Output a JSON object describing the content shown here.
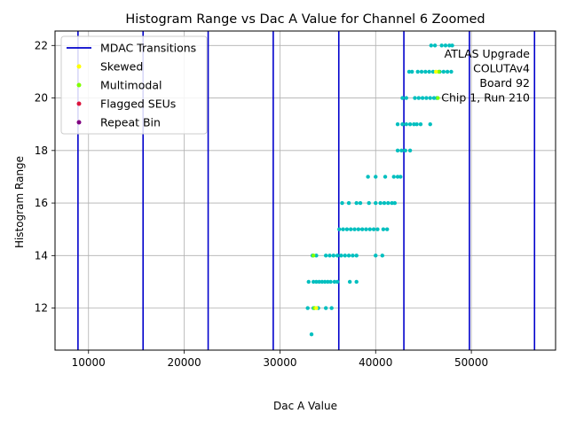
{
  "chart_data": {
    "type": "scatter",
    "title": "Histogram Range vs Dac A Value for Channel 6 Zoomed",
    "xlabel": "Dac A Value",
    "ylabel": "Histogram Range",
    "xlim": [
      6500,
      58800
    ],
    "ylim": [
      10.4,
      22.55
    ],
    "xticks": [
      10000,
      20000,
      30000,
      40000,
      50000
    ],
    "xtick_labels": [
      "10000",
      "20000",
      "30000",
      "40000",
      "50000"
    ],
    "yticks": [
      12,
      14,
      16,
      18,
      20,
      22
    ],
    "ytick_labels": [
      "12",
      "14",
      "16",
      "18",
      "20",
      "22"
    ],
    "grid": true,
    "legend_position": "top-left",
    "annotation": [
      "ATLAS Upgrade",
      "COLUTAv4",
      "Board 92",
      "Chip 1, Run 210"
    ],
    "mdac_transitions": [
      8900,
      15700,
      22500,
      29300,
      36150,
      42950,
      49800,
      56600
    ],
    "legend": [
      {
        "label": "MDAC Transitions",
        "kind": "line",
        "color": "#0000cc"
      },
      {
        "label": "Skewed",
        "kind": "point",
        "color": "#ffff00"
      },
      {
        "label": "Multimodal",
        "kind": "point",
        "color": "#7fff00"
      },
      {
        "label": "Flagged SEUs",
        "kind": "point",
        "color": "#dc143c"
      },
      {
        "label": "Repeat Bin",
        "kind": "point",
        "color": "#800080"
      }
    ],
    "series": [
      {
        "color": "#00bfbf",
        "points": [
          [
            33300,
            11
          ],
          [
            32900,
            12
          ],
          [
            33500,
            12
          ],
          [
            34000,
            12
          ],
          [
            34800,
            12
          ],
          [
            35400,
            12
          ],
          [
            33000,
            13
          ],
          [
            33500,
            13
          ],
          [
            33800,
            13
          ],
          [
            34100,
            13
          ],
          [
            34400,
            13
          ],
          [
            34700,
            13
          ],
          [
            35000,
            13
          ],
          [
            35300,
            13
          ],
          [
            35700,
            13
          ],
          [
            36000,
            13
          ],
          [
            37300,
            13
          ],
          [
            38000,
            13
          ],
          [
            33400,
            14
          ],
          [
            33800,
            14
          ],
          [
            34800,
            14
          ],
          [
            35200,
            14
          ],
          [
            35600,
            14
          ],
          [
            36000,
            14
          ],
          [
            36400,
            14
          ],
          [
            36800,
            14
          ],
          [
            37200,
            14
          ],
          [
            37600,
            14
          ],
          [
            38000,
            14
          ],
          [
            40000,
            14
          ],
          [
            40700,
            14
          ],
          [
            36200,
            15
          ],
          [
            36600,
            15
          ],
          [
            37000,
            15
          ],
          [
            37400,
            15
          ],
          [
            37800,
            15
          ],
          [
            38200,
            15
          ],
          [
            38600,
            15
          ],
          [
            39000,
            15
          ],
          [
            39400,
            15
          ],
          [
            39800,
            15
          ],
          [
            40200,
            15
          ],
          [
            40800,
            15
          ],
          [
            41200,
            15
          ],
          [
            36500,
            16
          ],
          [
            37200,
            16
          ],
          [
            38000,
            16
          ],
          [
            38400,
            16
          ],
          [
            39300,
            16
          ],
          [
            40000,
            16
          ],
          [
            40500,
            16
          ],
          [
            40900,
            16
          ],
          [
            41300,
            16
          ],
          [
            41700,
            16
          ],
          [
            42000,
            16
          ],
          [
            39200,
            17
          ],
          [
            40000,
            17
          ],
          [
            41000,
            17
          ],
          [
            41900,
            17
          ],
          [
            42300,
            17
          ],
          [
            42600,
            17
          ],
          [
            42300,
            18
          ],
          [
            42700,
            18
          ],
          [
            43100,
            18
          ],
          [
            43600,
            18
          ],
          [
            42300,
            19
          ],
          [
            42800,
            19
          ],
          [
            43200,
            19
          ],
          [
            43600,
            19
          ],
          [
            44000,
            19
          ],
          [
            44300,
            19
          ],
          [
            44700,
            19
          ],
          [
            45700,
            19
          ],
          [
            42800,
            20
          ],
          [
            43200,
            20
          ],
          [
            44100,
            20
          ],
          [
            44500,
            20
          ],
          [
            44900,
            20
          ],
          [
            45300,
            20
          ],
          [
            45700,
            20
          ],
          [
            46100,
            20
          ],
          [
            46400,
            20
          ],
          [
            43500,
            21
          ],
          [
            43800,
            21
          ],
          [
            44400,
            21
          ],
          [
            44800,
            21
          ],
          [
            45200,
            21
          ],
          [
            45600,
            21
          ],
          [
            46000,
            21
          ],
          [
            46700,
            21
          ],
          [
            47100,
            21
          ],
          [
            47500,
            21
          ],
          [
            47900,
            21
          ],
          [
            45800,
            22
          ],
          [
            46200,
            22
          ],
          [
            46900,
            22
          ],
          [
            47300,
            22
          ],
          [
            47700,
            22
          ],
          [
            48000,
            22
          ]
        ]
      },
      {
        "color": "#7fff00",
        "points": [
          [
            33500,
            14
          ],
          [
            33600,
            12
          ],
          [
            46500,
            20
          ],
          [
            46600,
            21
          ]
        ]
      },
      {
        "color": "#ffff00",
        "points": [
          [
            33800,
            12
          ],
          [
            46300,
            21
          ]
        ]
      }
    ]
  }
}
